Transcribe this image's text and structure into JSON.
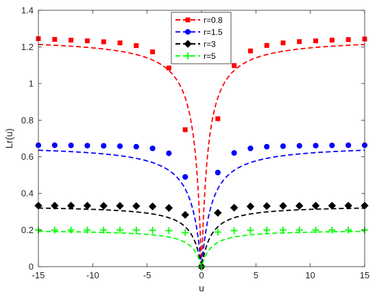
{
  "chart_data": {
    "type": "line",
    "title": "",
    "xlabel": "u",
    "ylabel": "Lr(u)",
    "xlim": [
      -15,
      15
    ],
    "ylim": [
      0,
      1.4
    ],
    "grid": false,
    "legend_position": "top-center",
    "x_ticks": [
      -15,
      -10,
      -5,
      0,
      5,
      10,
      15
    ],
    "x_tick_labels": [
      "-15",
      "-10",
      "-5",
      "0",
      "5",
      "10",
      "15"
    ],
    "y_ticks": [
      0,
      0.2,
      0.4,
      0.6,
      0.8,
      1,
      1.2,
      1.4
    ],
    "y_tick_labels": [
      "0",
      "0.2",
      "0.4",
      "0.6",
      "0.8",
      "1",
      "1.2",
      "1.4"
    ],
    "series": [
      {
        "name": "r=0.8",
        "color": "#ff0000",
        "marker": "square",
        "x": [
          -15,
          -13.5,
          -12,
          -10.5,
          -9,
          -7.5,
          -6,
          -4.5,
          -3,
          -1.5,
          0,
          1.5,
          3,
          4.5,
          6,
          7.5,
          9,
          10.5,
          12,
          13.5,
          15
        ],
        "y": [
          1.245,
          1.241,
          1.237,
          1.233,
          1.228,
          1.222,
          1.207,
          1.173,
          1.085,
          0.748,
          0.0,
          0.808,
          1.098,
          1.178,
          1.208,
          1.222,
          1.229,
          1.233,
          1.237,
          1.24,
          1.243
        ]
      },
      {
        "name": "r=1.5",
        "color": "#0000ff",
        "marker": "circle",
        "x": [
          -15,
          -13.5,
          -12,
          -10.5,
          -9,
          -7.5,
          -6,
          -4.5,
          -3,
          -1.5,
          0,
          1.5,
          3,
          4.5,
          6,
          7.5,
          9,
          10.5,
          12,
          13.5,
          15
        ],
        "y": [
          0.663,
          0.663,
          0.662,
          0.661,
          0.66,
          0.658,
          0.655,
          0.646,
          0.619,
          0.49,
          0.0,
          0.514,
          0.621,
          0.646,
          0.655,
          0.658,
          0.66,
          0.661,
          0.662,
          0.663,
          0.663
        ]
      },
      {
        "name": "r=3",
        "color": "#000000",
        "marker": "diamond",
        "x": [
          -15,
          -13.5,
          -12,
          -10.5,
          -9,
          -7.5,
          -6,
          -4.5,
          -3,
          -1.5,
          0,
          1.5,
          3,
          4.5,
          6,
          7.5,
          9,
          10.5,
          12,
          13.5,
          15
        ],
        "y": [
          0.333,
          0.333,
          0.333,
          0.333,
          0.332,
          0.332,
          0.331,
          0.329,
          0.321,
          0.283,
          0.0,
          0.294,
          0.322,
          0.329,
          0.331,
          0.332,
          0.332,
          0.333,
          0.333,
          0.333,
          0.333
        ]
      },
      {
        "name": "r=5",
        "color": "#00ff00",
        "marker": "plus",
        "x": [
          -15,
          -13.5,
          -12,
          -10.5,
          -9,
          -7.5,
          -6,
          -4.5,
          -3,
          -1.5,
          0,
          1.5,
          3,
          4.5,
          6,
          7.5,
          9,
          10.5,
          12,
          13.5,
          15
        ],
        "y": [
          0.2,
          0.2,
          0.2,
          0.2,
          0.2,
          0.2,
          0.2,
          0.199,
          0.197,
          0.186,
          0.0,
          0.189,
          0.197,
          0.199,
          0.2,
          0.2,
          0.2,
          0.2,
          0.2,
          0.2,
          0.2
        ]
      }
    ]
  }
}
